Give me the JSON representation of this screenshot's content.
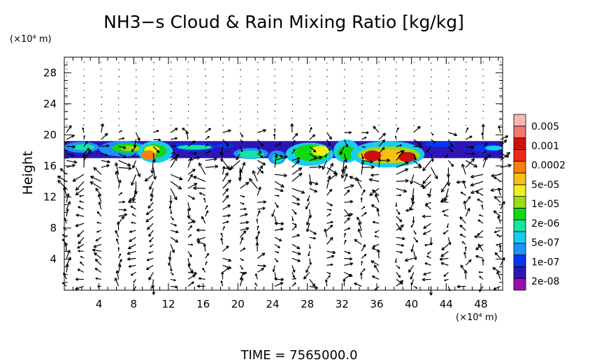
{
  "chart_data": {
    "type": "heatmap",
    "title": "NH3−s Cloud & Rain Mixing Ratio [kg/kg]",
    "ylabel": "Height",
    "x_unit": "(×10⁴ m)",
    "y_unit": "(×10⁴ m)",
    "footer": "TIME  =  7565000.0",
    "xlim": [
      0,
      50.5
    ],
    "ylim": [
      0,
      30
    ],
    "x_ticks": [
      4,
      8,
      12,
      16,
      20,
      24,
      28,
      32,
      36,
      40,
      44,
      48
    ],
    "y_ticks": [
      4,
      8,
      12,
      16,
      20,
      24,
      28
    ],
    "colorbar": {
      "labels": [
        "0.005",
        "0.001",
        "0.0002",
        "5e-05",
        "1e-05",
        "2e-06",
        "5e-07",
        "1e-07",
        "2e-08"
      ],
      "colors": [
        "#9a0eb0",
        "#2c16b8",
        "#0536f0",
        "#1e90ff",
        "#18ccf0",
        "#12e6a0",
        "#12d812",
        "#9adc14",
        "#eef01c",
        "#f8c012",
        "#f88012",
        "#ec2a14",
        "#cc1010",
        "#f07870",
        "#f8b8b0"
      ]
    },
    "cloud_level": 1,
    "cloud_regions": [
      {
        "x": [
          0.0,
          4.0
        ],
        "y": [
          17.7,
          19.1
        ],
        "level": 3
      },
      {
        "x": [
          1.0,
          3.5
        ],
        "y": [
          18.0,
          18.8
        ],
        "level": 5
      },
      {
        "x": [
          4.0,
          9.5
        ],
        "y": [
          17.2,
          19.2
        ],
        "level": 3
      },
      {
        "x": [
          5.5,
          9.0
        ],
        "y": [
          17.7,
          18.9
        ],
        "level": 6
      },
      {
        "x": [
          6.5,
          8.8
        ],
        "y": [
          17.9,
          18.6
        ],
        "level": 7
      },
      {
        "x": [
          8.5,
          12.5
        ],
        "y": [
          16.4,
          19.2
        ],
        "level": 4
      },
      {
        "x": [
          9.0,
          11.8
        ],
        "y": [
          17.0,
          18.8
        ],
        "level": 6
      },
      {
        "x": [
          9.2,
          11.0
        ],
        "y": [
          17.6,
          18.6
        ],
        "level": 8
      },
      {
        "x": [
          8.9,
          10.5
        ],
        "y": [
          16.8,
          18.0
        ],
        "level": 10
      },
      {
        "x": [
          12.5,
          17.5
        ],
        "y": [
          17.9,
          19.0
        ],
        "level": 2
      },
      {
        "x": [
          13.0,
          17.0
        ],
        "y": [
          18.1,
          18.7
        ],
        "level": 5
      },
      {
        "x": [
          17.5,
          19.5
        ],
        "y": [
          18.3,
          18.9
        ],
        "level": 2
      },
      {
        "x": [
          19.5,
          23.5
        ],
        "y": [
          16.9,
          18.3
        ],
        "level": 3
      },
      {
        "x": [
          20.0,
          23.0
        ],
        "y": [
          17.0,
          18.0
        ],
        "level": 5
      },
      {
        "x": [
          23.5,
          25.5
        ],
        "y": [
          16.2,
          18.0
        ],
        "level": 3
      },
      {
        "x": [
          24.0,
          25.2
        ],
        "y": [
          16.4,
          17.6
        ],
        "level": 5
      },
      {
        "x": [
          25.5,
          31.0
        ],
        "y": [
          16.0,
          19.0
        ],
        "level": 4
      },
      {
        "x": [
          26.5,
          30.5
        ],
        "y": [
          16.6,
          18.8
        ],
        "level": 6
      },
      {
        "x": [
          28.5,
          30.5
        ],
        "y": [
          17.3,
          18.6
        ],
        "level": 8
      },
      {
        "x": [
          31.0,
          34.0
        ],
        "y": [
          16.4,
          19.4
        ],
        "level": 4
      },
      {
        "x": [
          31.5,
          33.5
        ],
        "y": [
          16.8,
          18.6
        ],
        "level": 6
      },
      {
        "x": [
          33.0,
          41.5
        ],
        "y": [
          15.8,
          19.2
        ],
        "level": 4
      },
      {
        "x": [
          33.8,
          41.0
        ],
        "y": [
          16.3,
          18.5
        ],
        "level": 7
      },
      {
        "x": [
          34.0,
          40.5
        ],
        "y": [
          16.5,
          18.1
        ],
        "level": 9
      },
      {
        "x": [
          34.5,
          36.5
        ],
        "y": [
          16.6,
          18.0
        ],
        "level": 12
      },
      {
        "x": [
          38.5,
          40.5
        ],
        "y": [
          16.5,
          17.8
        ],
        "level": 12
      },
      {
        "x": [
          41.5,
          45.0
        ],
        "y": [
          18.4,
          19.2
        ],
        "level": 2
      },
      {
        "x": [
          47.0,
          50.5
        ],
        "y": [
          17.8,
          18.8
        ],
        "level": 2
      },
      {
        "x": [
          48.5,
          50.5
        ],
        "y": [
          18.0,
          18.6
        ],
        "level": 4
      }
    ]
  }
}
